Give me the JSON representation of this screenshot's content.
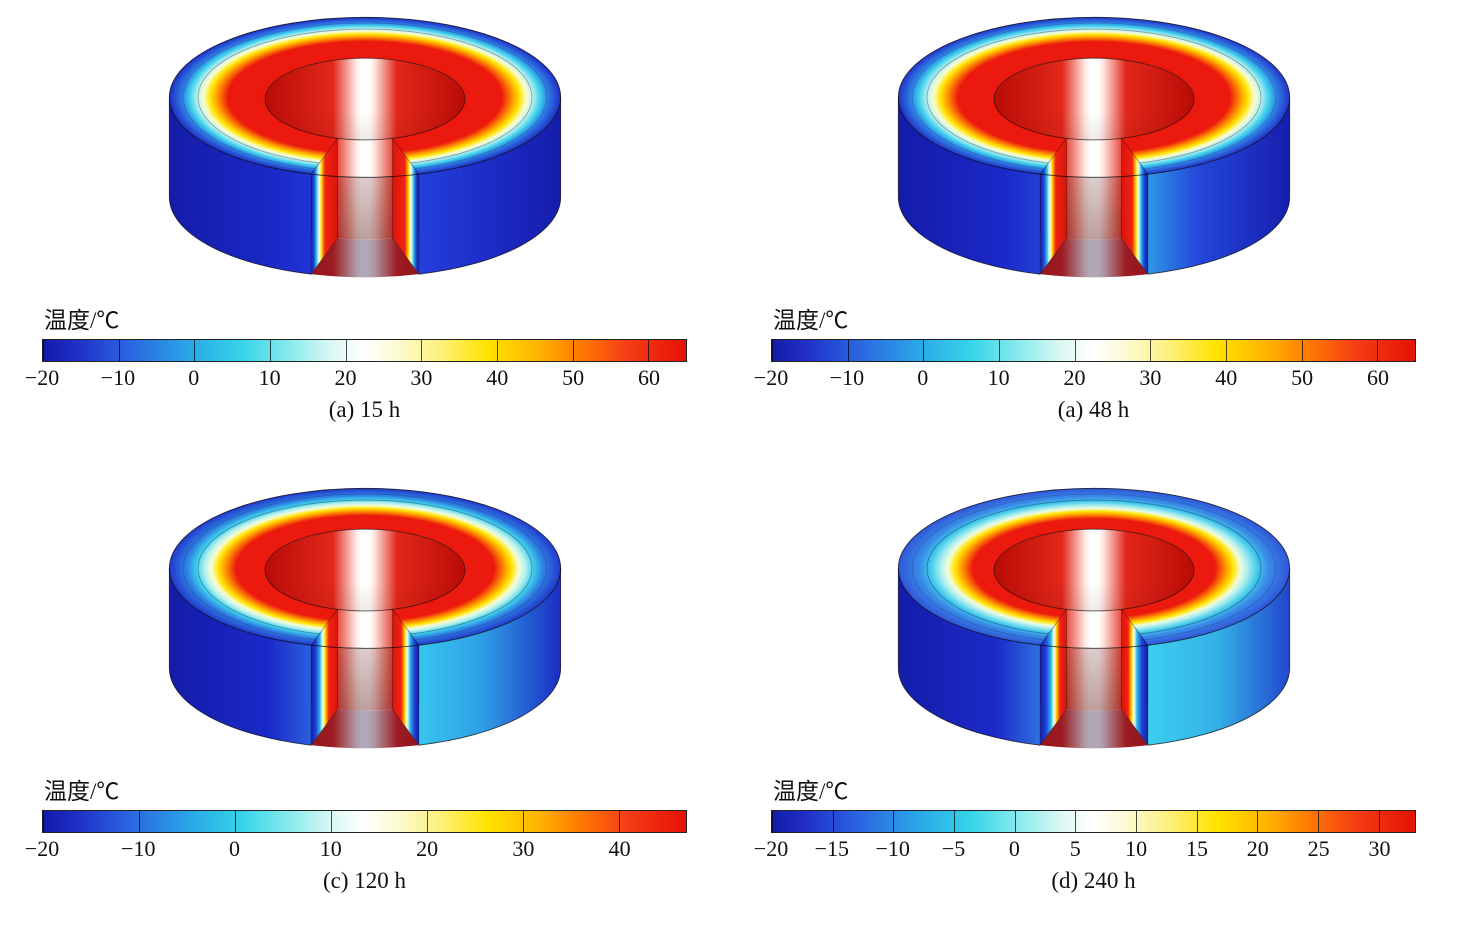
{
  "figure": {
    "panels": [
      {
        "caption": "(a) 15 h",
        "colorbar_label": "温度/℃",
        "ticks": [
          "−20",
          "−10",
          "0",
          "10",
          "20",
          "30",
          "40",
          "50",
          "60"
        ],
        "tick_values": [
          -20,
          -10,
          0,
          10,
          20,
          30,
          40,
          50,
          60
        ],
        "range": [
          -20,
          65
        ]
      },
      {
        "caption": "(a) 48 h",
        "colorbar_label": "温度/℃",
        "ticks": [
          "−20",
          "−10",
          "0",
          "10",
          "20",
          "30",
          "40",
          "50",
          "60"
        ],
        "tick_values": [
          -20,
          -10,
          0,
          10,
          20,
          30,
          40,
          50,
          60
        ],
        "range": [
          -20,
          65
        ]
      },
      {
        "caption": "(c) 120 h",
        "colorbar_label": "温度/℃",
        "ticks": [
          "−20",
          "−10",
          "0",
          "10",
          "20",
          "30",
          "40"
        ],
        "tick_values": [
          -20,
          -10,
          0,
          10,
          20,
          30,
          40
        ],
        "range": [
          -20,
          47
        ]
      },
      {
        "caption": "(d) 240 h",
        "colorbar_label": "温度/℃",
        "ticks": [
          "−20",
          "−15",
          "−10",
          "−5",
          "0",
          "5",
          "10",
          "15",
          "20",
          "25",
          "30"
        ],
        "tick_values": [
          -20,
          -15,
          -10,
          -5,
          0,
          5,
          10,
          15,
          20,
          25,
          30
        ],
        "range": [
          -20,
          33
        ]
      }
    ]
  },
  "chart_data": [
    {
      "type": "heatmap",
      "title": "(a) 15 h",
      "colorbar_label": "温度/℃",
      "colorbar_ticks": [
        -20,
        -10,
        0,
        10,
        20,
        30,
        40,
        50,
        60
      ],
      "colorbar_range": [
        -20,
        65
      ],
      "colormap": [
        "#131ba8",
        "#2a62e0",
        "#36d4e8",
        "#ffffff",
        "#ffe400",
        "#ff7e00",
        "#e51205"
      ],
      "description": "3D cutaway of an annular cylinder after 15 h: inner bore at peak temperature (red, ~60–65 ℃) with white hottest stripe at the core; outer surface still cold (deep blue, −20 ℃); thin yellow–white transition front near the outer radius."
    },
    {
      "type": "heatmap",
      "title": "(a) 48 h",
      "colorbar_label": "温度/℃",
      "colorbar_ticks": [
        -20,
        -10,
        0,
        10,
        20,
        30,
        40,
        50,
        60
      ],
      "colorbar_range": [
        -20,
        65
      ],
      "colormap": [
        "#131ba8",
        "#2a62e0",
        "#36d4e8",
        "#ffffff",
        "#ffe400",
        "#ff7e00",
        "#e51205"
      ],
      "description": "Same geometry after 48 h: transition front moved slightly inward; right outer side wall beginning to warm (cyan tint); core still red with white hottest band."
    },
    {
      "type": "heatmap",
      "title": "(c) 120 h",
      "colorbar_ticks": [
        -20,
        -10,
        0,
        10,
        20,
        30,
        40
      ],
      "colorbar_range": [
        -20,
        47
      ],
      "colorbar_label": "温度/℃",
      "colormap": [
        "#131ba8",
        "#2a62e0",
        "#36d4e8",
        "#ffffff",
        "#ffe400",
        "#ff7e00",
        "#e51205"
      ],
      "description": "After 120 h the maximum drops to ~47 ℃; cyan/blue cold region penetrates deeper into the ring; outer right wall largely cyan; red core region reduced."
    },
    {
      "type": "heatmap",
      "title": "(d) 240 h",
      "colorbar_ticks": [
        -20,
        -15,
        -10,
        -5,
        0,
        5,
        10,
        15,
        20,
        25,
        30
      ],
      "colorbar_range": [
        -20,
        33
      ],
      "colorbar_label": "温度/℃",
      "colormap": [
        "#131ba8",
        "#2a62e0",
        "#36d4e8",
        "#ffffff",
        "#ffe400",
        "#ff7e00",
        "#e51205"
      ],
      "description": "After 240 h the maximum is ~33 ℃; cooling front well inside the ring; broad cyan/light-blue outer band on top surface and side walls; shrinking red core with white stripe."
    }
  ]
}
